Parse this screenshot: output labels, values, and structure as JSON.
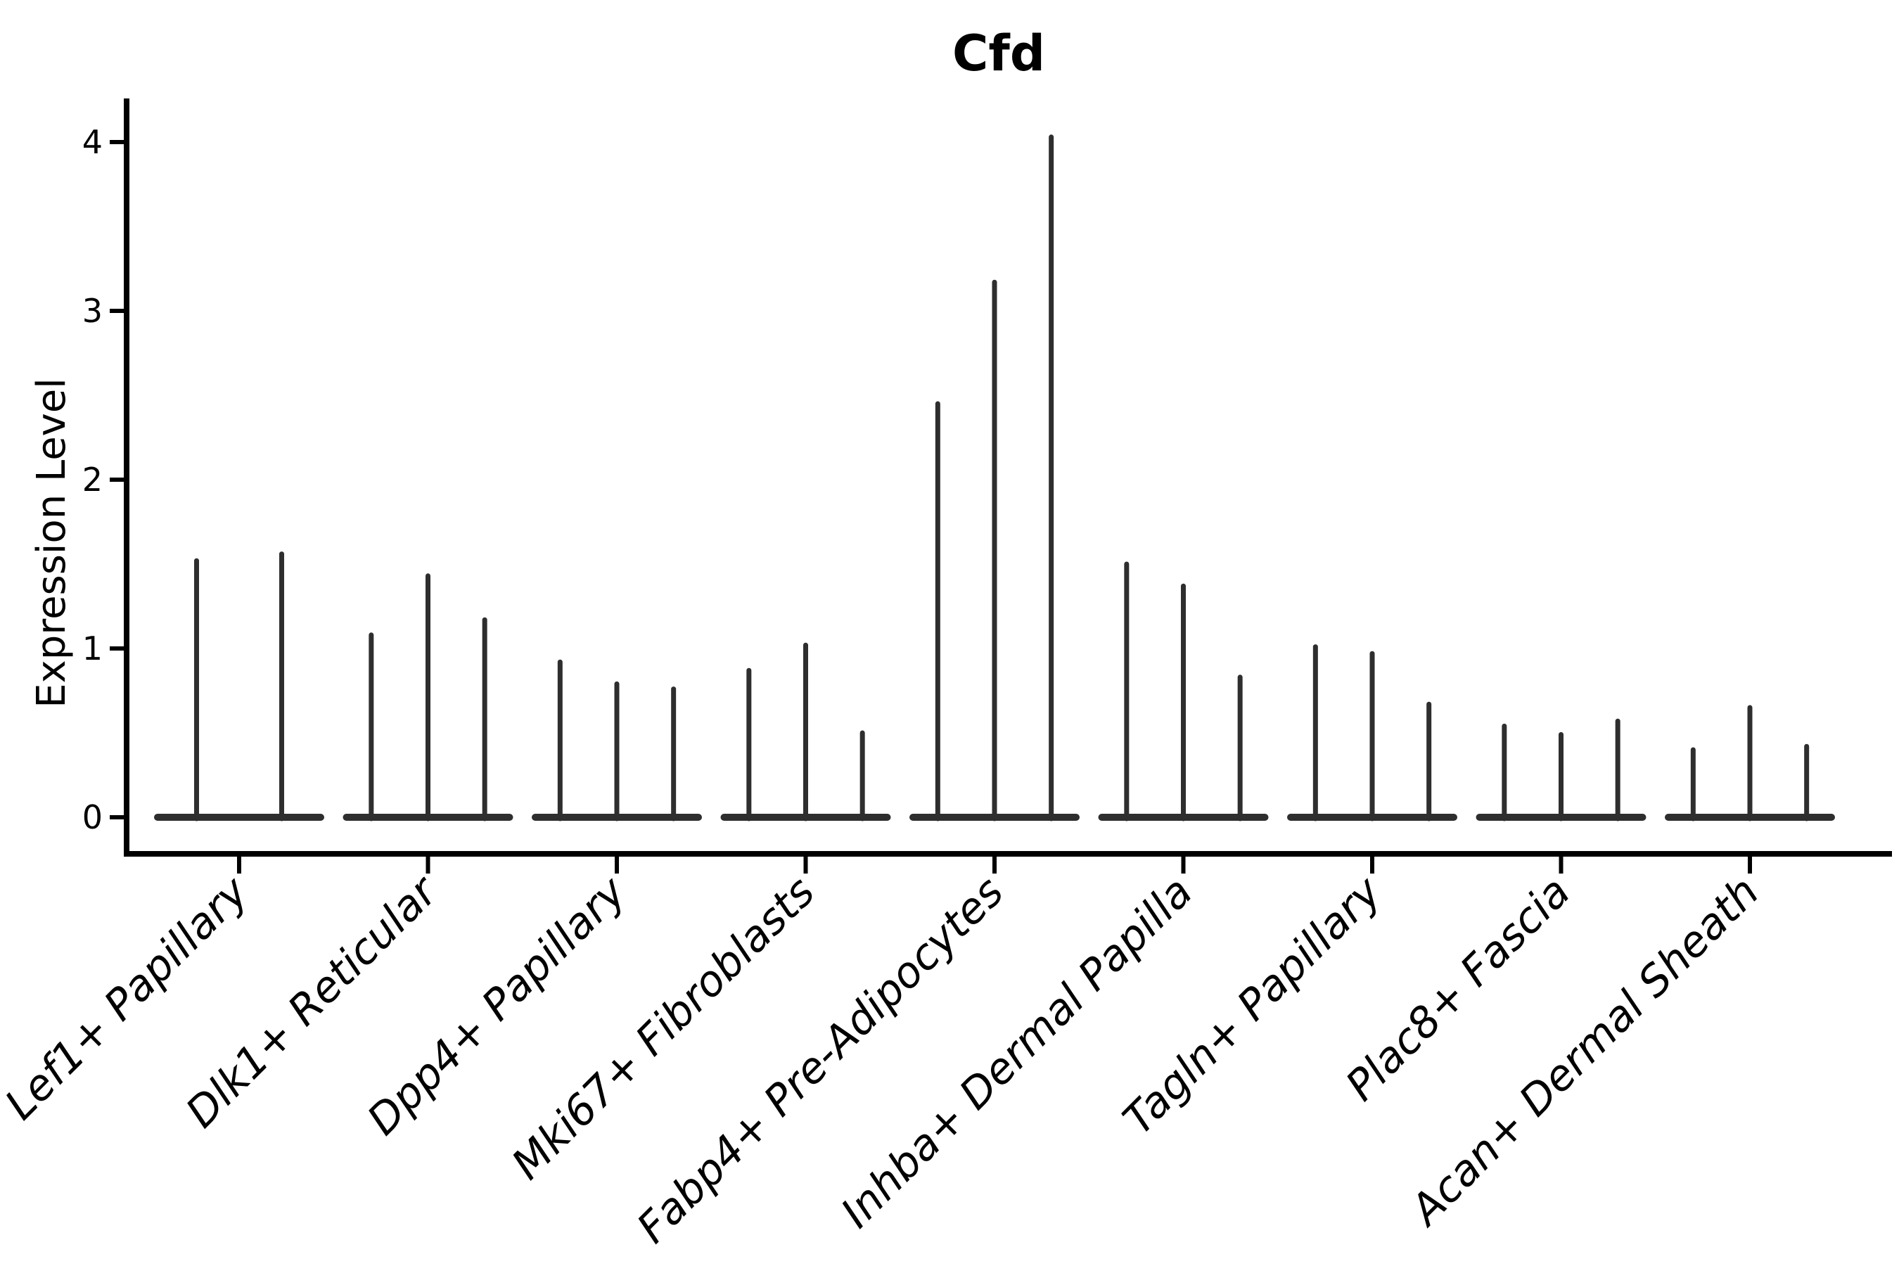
{
  "title": "Cfd",
  "chart_data": {
    "type": "violin",
    "title": "Cfd",
    "xlabel": "",
    "ylabel": "Expression Level",
    "yticks": [
      0,
      1,
      2,
      3,
      4
    ],
    "ylim": [
      -0.2,
      4.27
    ],
    "grid": false,
    "legend": "none",
    "note": "Each category shows thin collapsed violins (spikes) rising from a flat base at 0; Lef1+ Papillary has 2 violins, all other categories have 3.",
    "groups": [
      {
        "label": "Lef1+ Papillary",
        "spike_heights": [
          1.52,
          1.56
        ]
      },
      {
        "label": "Dlk1+ Reticular",
        "spike_heights": [
          1.08,
          1.43,
          1.17
        ]
      },
      {
        "label": "Dpp4+ Papillary",
        "spike_heights": [
          0.92,
          0.79,
          0.76
        ]
      },
      {
        "label": "Mki67+ Fibroblasts",
        "spike_heights": [
          0.87,
          1.02,
          0.5
        ]
      },
      {
        "label": "Fabp4+ Pre-Adipocytes",
        "spike_heights": [
          2.45,
          3.17,
          4.03
        ]
      },
      {
        "label": "Inhba+ Dermal Papilla",
        "spike_heights": [
          1.5,
          1.37,
          0.83
        ]
      },
      {
        "label": "Tagln+ Papillary",
        "spike_heights": [
          1.01,
          0.97,
          0.67
        ]
      },
      {
        "label": "Plac8+ Fascia",
        "spike_heights": [
          0.54,
          0.49,
          0.57
        ]
      },
      {
        "label": "Acan+ Dermal Sheath",
        "spike_heights": [
          0.4,
          0.65,
          0.42
        ]
      }
    ],
    "colors": {
      "violin_stroke": "#2e2e2e",
      "axis": "#000000",
      "text": "#000000",
      "background": "#ffffff"
    }
  }
}
